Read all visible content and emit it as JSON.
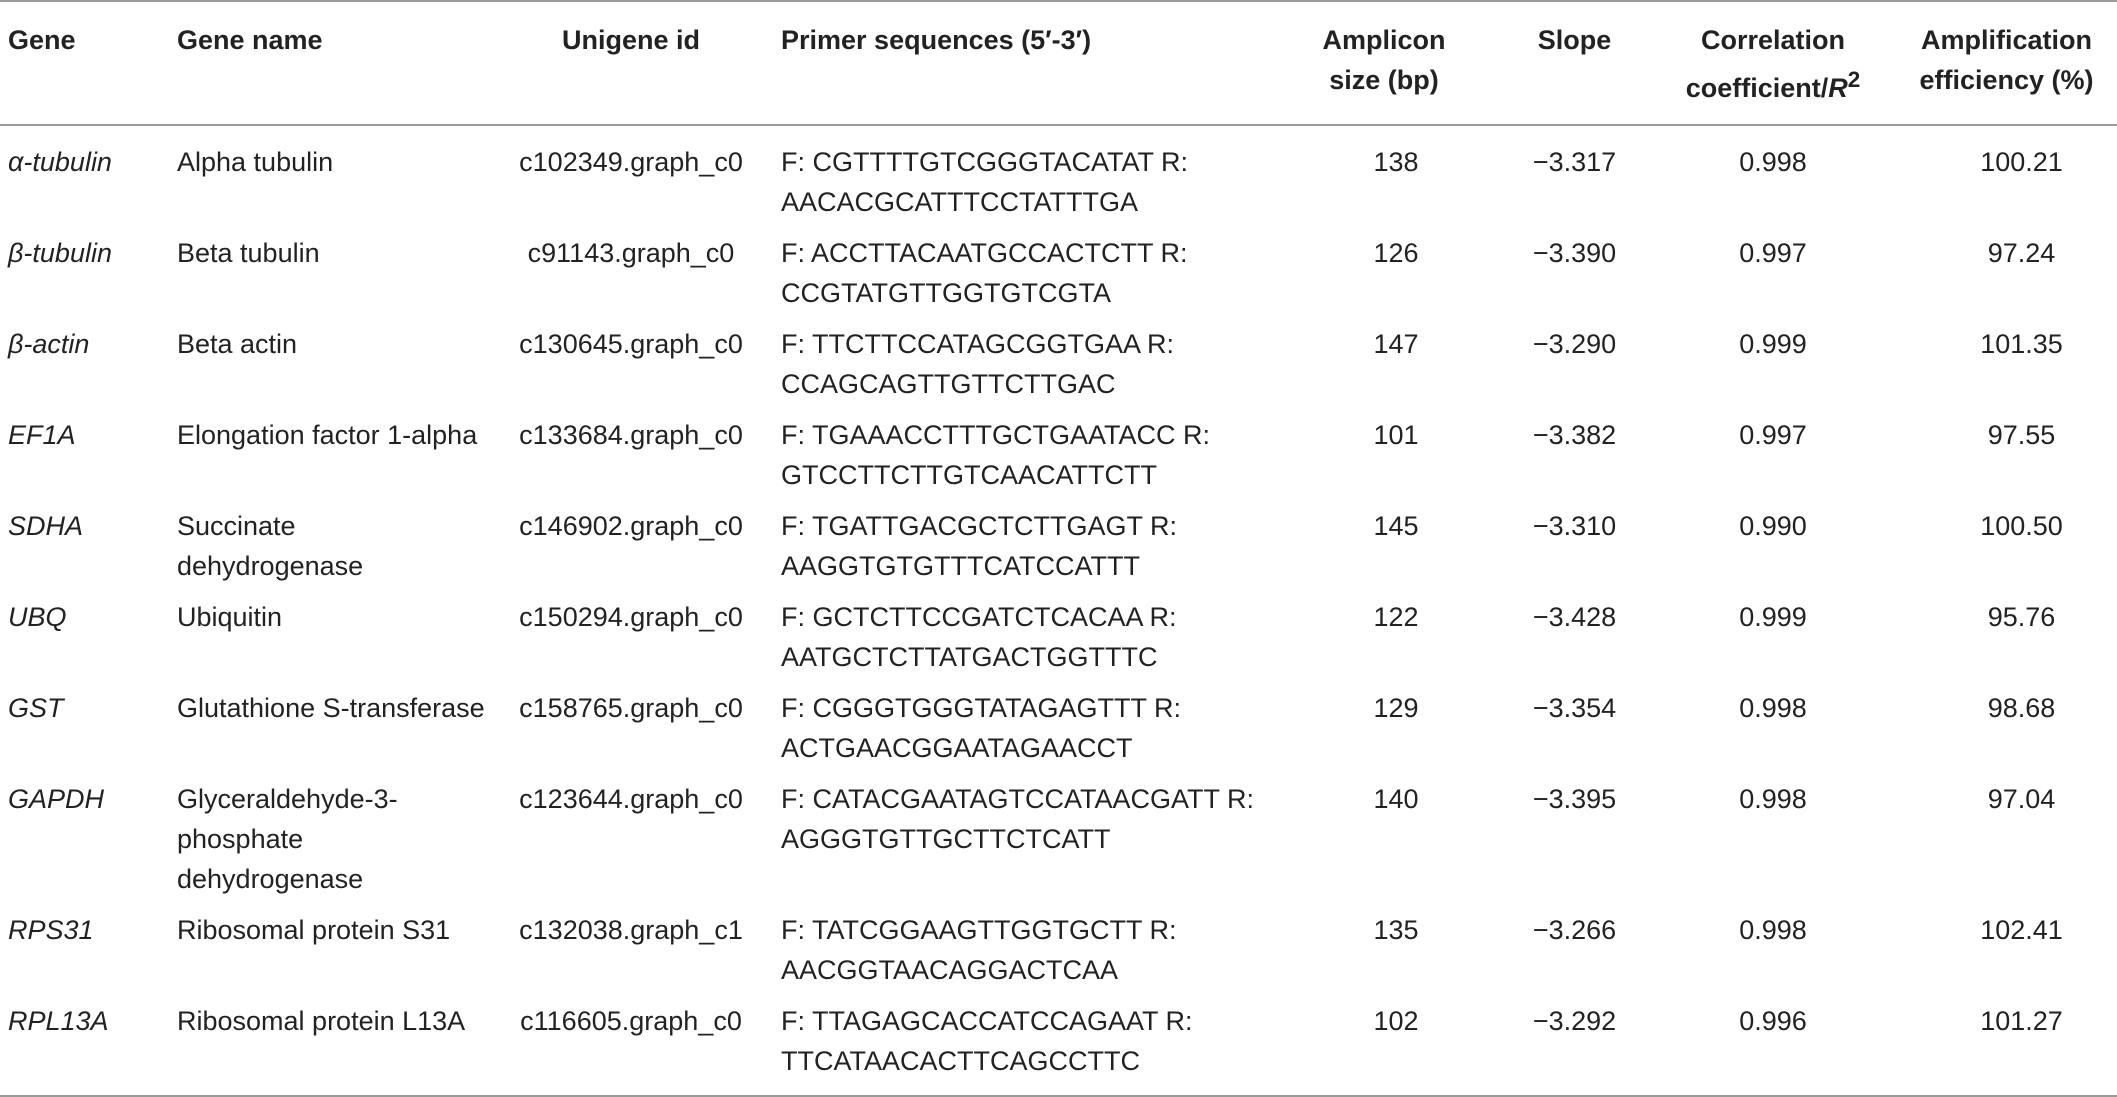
{
  "headers": {
    "gene": "Gene",
    "gene_name": "Gene name",
    "unigene_id": "Unigene id",
    "primer": "Primer sequences (5′-3′)",
    "amplicon": "Amplicon size (bp)",
    "slope": "Slope",
    "correlation_prefix": "Correlation coefficient/",
    "correlation_r": "R",
    "correlation_sup": "2",
    "efficiency": "Amplification efficiency (%)"
  },
  "rows": [
    {
      "gene": "α-tubulin",
      "gene_name": "Alpha tubulin",
      "unigene_id": "c102349.graph_c0",
      "primer": "F: CGTTTTGTCGGGTACATAT R: AACACGCATTTCCTATTTGA",
      "amplicon": "138",
      "slope": "−3.317",
      "correlation": "0.998",
      "efficiency": "100.21"
    },
    {
      "gene": "β-tubulin",
      "gene_name": "Beta tubulin",
      "unigene_id": "c91143.graph_c0",
      "primer": "F: ACCTTACAATGCCACTCTT R: CCGTATGTTGGTGTCGTA",
      "amplicon": "126",
      "slope": "−3.390",
      "correlation": "0.997",
      "efficiency": "97.24"
    },
    {
      "gene": "β-actin",
      "gene_name": "Beta actin",
      "unigene_id": "c130645.graph_c0",
      "primer": "F: TTCTTCCATAGCGGTGAA R: CCAGCAGTTGTTCTTGAC",
      "amplicon": "147",
      "slope": "−3.290",
      "correlation": "0.999",
      "efficiency": "101.35"
    },
    {
      "gene": "EF1A",
      "gene_name": "Elongation factor 1-alpha",
      "unigene_id": "c133684.graph_c0",
      "primer": "F: TGAAACCTTTGCTGAATACC R: GTCCTTCTTGTCAACATTCTT",
      "amplicon": "101",
      "slope": "−3.382",
      "correlation": "0.997",
      "efficiency": "97.55"
    },
    {
      "gene": "SDHA",
      "gene_name": "Succinate dehydrogenase",
      "unigene_id": "c146902.graph_c0",
      "primer": "F: TGATTGACGCTCTTGAGT R: AAGGTGTGTTTCATCCATTT",
      "amplicon": "145",
      "slope": "−3.310",
      "correlation": "0.990",
      "efficiency": "100.50"
    },
    {
      "gene": "UBQ",
      "gene_name": "Ubiquitin",
      "unigene_id": "c150294.graph_c0",
      "primer": "F: GCTCTTCCGATCTCACAA R: AATGCTCTTATGACTGGTTTC",
      "amplicon": "122",
      "slope": "−3.428",
      "correlation": "0.999",
      "efficiency": "95.76"
    },
    {
      "gene": "GST",
      "gene_name": "Glutathione S-transferase",
      "unigene_id": "c158765.graph_c0",
      "primer": "F: CGGGTGGGTATAGAGTTT R: ACTGAACGGAATAGAACCT",
      "amplicon": "129",
      "slope": "−3.354",
      "correlation": "0.998",
      "efficiency": "98.68"
    },
    {
      "gene": "GAPDH",
      "gene_name": "Glyceraldehyde-3-phosphate dehydrogenase",
      "unigene_id": "c123644.graph_c0",
      "primer": "F: CATACGAATAGTCCATAACGATT R: AGGGTGTTGCTTCTCATT",
      "amplicon": "140",
      "slope": "−3.395",
      "correlation": "0.998",
      "efficiency": "97.04"
    },
    {
      "gene": "RPS31",
      "gene_name": "Ribosomal protein S31",
      "unigene_id": "c132038.graph_c1",
      "primer": "F: TATCGGAAGTTGGTGCTT R: AACGGTAACAGGACTCAA",
      "amplicon": "135",
      "slope": "−3.266",
      "correlation": "0.998",
      "efficiency": "102.41"
    },
    {
      "gene": "RPL13A",
      "gene_name": "Ribosomal protein L13A",
      "unigene_id": "c116605.graph_c0",
      "primer": "F: TTAGAGCACCATCCAGAAT R: TTCATAACACTTCAGCCTTC",
      "amplicon": "102",
      "slope": "−3.292",
      "correlation": "0.996",
      "efficiency": "101.27"
    }
  ]
}
